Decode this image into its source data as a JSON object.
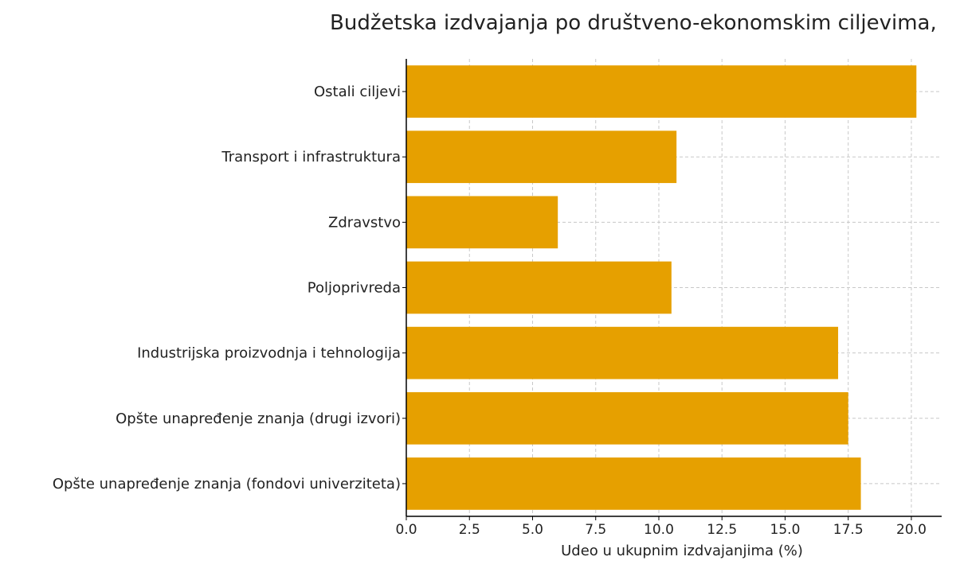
{
  "chart_data": {
    "type": "bar",
    "orientation": "horizontal",
    "title": "Budžetska izdvajanja po društveno-ekonomskim ciljevima,",
    "xlabel": "Udeo u ukupnim izdvajanjima (%)",
    "ylabel": "",
    "categories": [
      "Ostali ciljevi",
      "Transport i infrastruktura",
      "Zdravstvo",
      "Poljoprivreda",
      "Industrijska proizvodnja i tehnologija",
      "Opšte unapređenje znanja (drugi izvori)",
      "Opšte unapređenje znanja (fondovi univerziteta)"
    ],
    "values": [
      20.2,
      10.7,
      6.0,
      10.5,
      17.1,
      17.5,
      18.0
    ],
    "xlim": [
      0,
      21.2
    ],
    "xticks": [
      0.0,
      2.5,
      5.0,
      7.5,
      10.0,
      12.5,
      15.0,
      17.5,
      20.0
    ],
    "xtick_labels": [
      "0.0",
      "2.5",
      "5.0",
      "7.5",
      "10.0",
      "12.5",
      "15.0",
      "17.5",
      "20.0"
    ],
    "grid": true,
    "legend": "none",
    "colors": {
      "bar": "#E6A000",
      "grid": "#c8c8c8",
      "axis": "#000000",
      "text": "#222222"
    }
  }
}
